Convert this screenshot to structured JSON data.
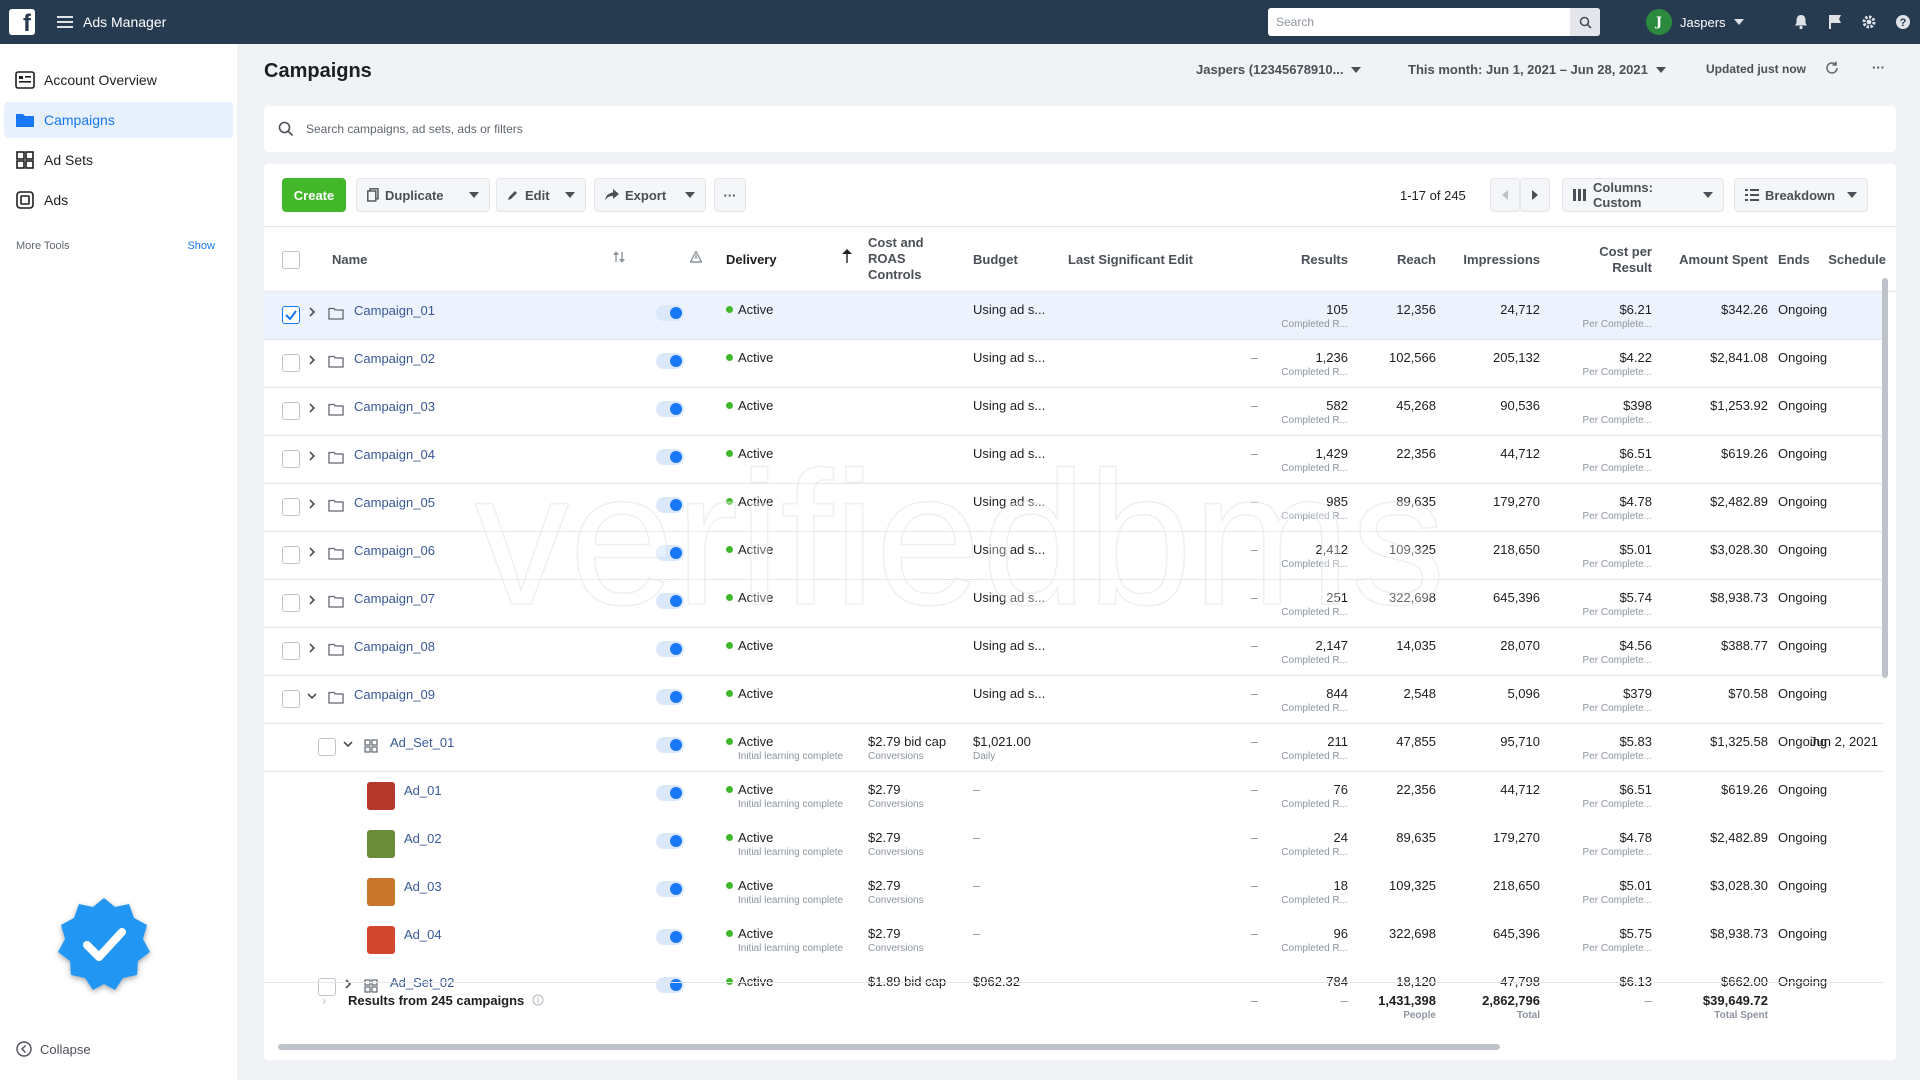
{
  "topbar": {
    "app_title": "Ads Manager",
    "search_placeholder": "Search",
    "account_name": "Jaspers",
    "account_initial": "J"
  },
  "sidebar": {
    "items": [
      {
        "label": "Account Overview",
        "icon": "account-overview-icon"
      },
      {
        "label": "Campaigns",
        "icon": "campaigns-folder-icon"
      },
      {
        "label": "Ad Sets",
        "icon": "ad-sets-grid-icon"
      },
      {
        "label": "Ads",
        "icon": "ads-icon"
      }
    ],
    "more_tools": "More Tools",
    "show": "Show",
    "collapse": "Collapse"
  },
  "header": {
    "title": "Campaigns",
    "account_selector": "Jaspers (12345678910...",
    "date_range": "This month: Jun 1, 2021 – Jun 28, 2021",
    "updated": "Updated just now"
  },
  "search": {
    "placeholder": "Search campaigns, ad sets, ads or filters"
  },
  "toolbar": {
    "create": "Create",
    "duplicate": "Duplicate",
    "edit": "Edit",
    "export": "Export",
    "more": "···",
    "pager": "1-17 of 245",
    "columns": "Columns: Custom",
    "breakdown": "Breakdown"
  },
  "columns": {
    "name": "Name",
    "delivery": "Delivery",
    "cost_roas_1": "Cost and",
    "cost_roas_2": "ROAS",
    "cost_roas_3": "Controls",
    "budget": "Budget",
    "last_edit": "Last Significant Edit",
    "results": "Results",
    "reach": "Reach",
    "impressions": "Impressions",
    "cpr_1": "Cost per",
    "cpr_2": "Result",
    "spent": "Amount Spent",
    "ends": "Ends",
    "schedule": "Schedule"
  },
  "rows": [
    {
      "level": 0,
      "name": "Campaign_01",
      "expanded": false,
      "selected": true,
      "delivery": "Active",
      "delivery_sub": "",
      "bid": "",
      "bid_sub": "",
      "budget": "Using ad s...",
      "budget_sub": "",
      "last_edit": "",
      "results": "105",
      "results_sub": "Completed R...",
      "reach": "12,356",
      "impressions": "24,712",
      "cpr": "$6.21",
      "cpr_sub": "Per Complete...",
      "spent": "$342.26",
      "ends": "Ongoing",
      "schedule": "–"
    },
    {
      "level": 0,
      "name": "Campaign_02",
      "expanded": false,
      "selected": false,
      "delivery": "Active",
      "delivery_sub": "",
      "bid": "",
      "bid_sub": "",
      "budget": "Using ad s...",
      "budget_sub": "",
      "last_edit": "–",
      "results": "1,236",
      "results_sub": "Completed R...",
      "reach": "102,566",
      "impressions": "205,132",
      "cpr": "$4.22",
      "cpr_sub": "Per Complete...",
      "spent": "$2,841.08",
      "ends": "Ongoing",
      "schedule": "–"
    },
    {
      "level": 0,
      "name": "Campaign_03",
      "expanded": false,
      "selected": false,
      "delivery": "Active",
      "delivery_sub": "",
      "bid": "",
      "bid_sub": "",
      "budget": "Using ad s...",
      "budget_sub": "",
      "last_edit": "–",
      "results": "582",
      "results_sub": "Completed R...",
      "reach": "45,268",
      "impressions": "90,536",
      "cpr": "$398",
      "cpr_sub": "Per Complete...",
      "spent": "$1,253.92",
      "ends": "Ongoing",
      "schedule": "–"
    },
    {
      "level": 0,
      "name": "Campaign_04",
      "expanded": false,
      "selected": false,
      "delivery": "Active",
      "delivery_sub": "",
      "bid": "",
      "bid_sub": "",
      "budget": "Using ad s...",
      "budget_sub": "",
      "last_edit": "–",
      "results": "1,429",
      "results_sub": "Completed R...",
      "reach": "22,356",
      "impressions": "44,712",
      "cpr": "$6.51",
      "cpr_sub": "Per Complete...",
      "spent": "$619.26",
      "ends": "Ongoing",
      "schedule": "–"
    },
    {
      "level": 0,
      "name": "Campaign_05",
      "expanded": false,
      "selected": false,
      "delivery": "Active",
      "delivery_sub": "",
      "bid": "",
      "bid_sub": "",
      "budget": "Using ad s...",
      "budget_sub": "",
      "last_edit": "–",
      "results": "985",
      "results_sub": "Completed R...",
      "reach": "89,635",
      "impressions": "179,270",
      "cpr": "$4.78",
      "cpr_sub": "Per Complete...",
      "spent": "$2,482.89",
      "ends": "Ongoing",
      "schedule": "–"
    },
    {
      "level": 0,
      "name": "Campaign_06",
      "expanded": false,
      "selected": false,
      "delivery": "Active",
      "delivery_sub": "",
      "bid": "",
      "bid_sub": "",
      "budget": "Using ad s...",
      "budget_sub": "",
      "last_edit": "–",
      "results": "2,412",
      "results_sub": "Completed R...",
      "reach": "109,325",
      "impressions": "218,650",
      "cpr": "$5.01",
      "cpr_sub": "Per Complete...",
      "spent": "$3,028.30",
      "ends": "Ongoing",
      "schedule": "–"
    },
    {
      "level": 0,
      "name": "Campaign_07",
      "expanded": false,
      "selected": false,
      "delivery": "Active",
      "delivery_sub": "",
      "bid": "",
      "bid_sub": "",
      "budget": "Using ad s...",
      "budget_sub": "",
      "last_edit": "–",
      "results": "251",
      "results_sub": "Completed R...",
      "reach": "322,698",
      "impressions": "645,396",
      "cpr": "$5.74",
      "cpr_sub": "Per Complete...",
      "spent": "$8,938.73",
      "ends": "Ongoing",
      "schedule": "–"
    },
    {
      "level": 0,
      "name": "Campaign_08",
      "expanded": false,
      "selected": false,
      "delivery": "Active",
      "delivery_sub": "",
      "bid": "",
      "bid_sub": "",
      "budget": "Using ad s...",
      "budget_sub": "",
      "last_edit": "–",
      "results": "2,147",
      "results_sub": "Completed R...",
      "reach": "14,035",
      "impressions": "28,070",
      "cpr": "$4.56",
      "cpr_sub": "Per Complete...",
      "spent": "$388.77",
      "ends": "Ongoing",
      "schedule": "–"
    },
    {
      "level": 0,
      "name": "Campaign_09",
      "expanded": true,
      "selected": false,
      "delivery": "Active",
      "delivery_sub": "",
      "bid": "",
      "bid_sub": "",
      "budget": "Using ad s...",
      "budget_sub": "",
      "last_edit": "–",
      "results": "844",
      "results_sub": "Completed R...",
      "reach": "2,548",
      "impressions": "5,096",
      "cpr": "$379",
      "cpr_sub": "Per Complete...",
      "spent": "$70.58",
      "ends": "Ongoing",
      "schedule": "–"
    },
    {
      "level": 1,
      "name": "Ad_Set_01",
      "expanded": true,
      "selected": false,
      "delivery": "Active",
      "delivery_sub": "Initial learning complete",
      "bid": "$2.79 bid cap",
      "bid_sub": "Conversions",
      "budget": "$1,021.00",
      "budget_sub": "Daily",
      "last_edit": "–",
      "results": "211",
      "results_sub": "Completed R...",
      "reach": "47,855",
      "impressions": "95,710",
      "cpr": "$5.83",
      "cpr_sub": "Per Complete...",
      "spent": "$1,325.58",
      "ends": "Ongoing",
      "schedule": "Jun 2, 2021"
    },
    {
      "level": 2,
      "name": "Ad_01",
      "expanded": false,
      "selected": false,
      "thumb": "#b5382c",
      "delivery": "Active",
      "delivery_sub": "Initial learning complete",
      "bid": "$2.79",
      "bid_sub": "Conversions",
      "budget": "–",
      "budget_sub": "",
      "last_edit": "–",
      "results": "76",
      "results_sub": "Completed R...",
      "reach": "22,356",
      "impressions": "44,712",
      "cpr": "$6.51",
      "cpr_sub": "Per Complete...",
      "spent": "$619.26",
      "ends": "Ongoing",
      "schedule": "–"
    },
    {
      "level": 2,
      "name": "Ad_02",
      "expanded": false,
      "selected": false,
      "thumb": "#6a8c3a",
      "delivery": "Active",
      "delivery_sub": "Initial learning complete",
      "bid": "$2.79",
      "bid_sub": "Conversions",
      "budget": "–",
      "budget_sub": "",
      "last_edit": "–",
      "results": "24",
      "results_sub": "Completed R...",
      "reach": "89,635",
      "impressions": "179,270",
      "cpr": "$4.78",
      "cpr_sub": "Per Complete...",
      "spent": "$2,482.89",
      "ends": "Ongoing",
      "schedule": "–"
    },
    {
      "level": 2,
      "name": "Ad_03",
      "expanded": false,
      "selected": false,
      "thumb": "#c7762b",
      "delivery": "Active",
      "delivery_sub": "Initial learning complete",
      "bid": "$2.79",
      "bid_sub": "Conversions",
      "budget": "–",
      "budget_sub": "",
      "last_edit": "–",
      "results": "18",
      "results_sub": "Completed R...",
      "reach": "109,325",
      "impressions": "218,650",
      "cpr": "$5.01",
      "cpr_sub": "Per Complete...",
      "spent": "$3,028.30",
      "ends": "Ongoing",
      "schedule": "–"
    },
    {
      "level": 2,
      "name": "Ad_04",
      "expanded": false,
      "selected": false,
      "thumb": "#d2452f",
      "delivery": "Active",
      "delivery_sub": "Initial learning complete",
      "bid": "$2.79",
      "bid_sub": "Conversions",
      "budget": "–",
      "budget_sub": "",
      "last_edit": "–",
      "results": "96",
      "results_sub": "Completed R...",
      "reach": "322,698",
      "impressions": "645,396",
      "cpr": "$5.75",
      "cpr_sub": "Per Complete...",
      "spent": "$8,938.73",
      "ends": "Ongoing",
      "schedule": "–"
    },
    {
      "level": 1,
      "name": "Ad_Set_02",
      "expanded": false,
      "selected": false,
      "delivery": "Active",
      "delivery_sub": "",
      "bid": "$1.89 bid cap",
      "bid_sub": "",
      "budget": "$962.32",
      "budget_sub": "",
      "last_edit": "–",
      "results": "784",
      "results_sub": "",
      "reach": "18,120",
      "impressions": "47,798",
      "cpr": "$6.13",
      "cpr_sub": "",
      "spent": "$662.00",
      "ends": "Ongoing",
      "schedule": ""
    }
  ],
  "totals": {
    "label": "Results from 245 campaigns",
    "last_edit": "–",
    "results": "–",
    "reach": "1,431,398",
    "reach_sub": "People",
    "impressions": "2,862,796",
    "impressions_sub": "Total",
    "cpr": "–",
    "spent": "$39,649.72",
    "spent_sub": "Total Spent"
  },
  "watermark": "verifiedbms",
  "colors": {
    "accent": "#1877f2",
    "create": "#42b72a",
    "topbar": "#263b50",
    "active_dot": "#42b72a"
  }
}
